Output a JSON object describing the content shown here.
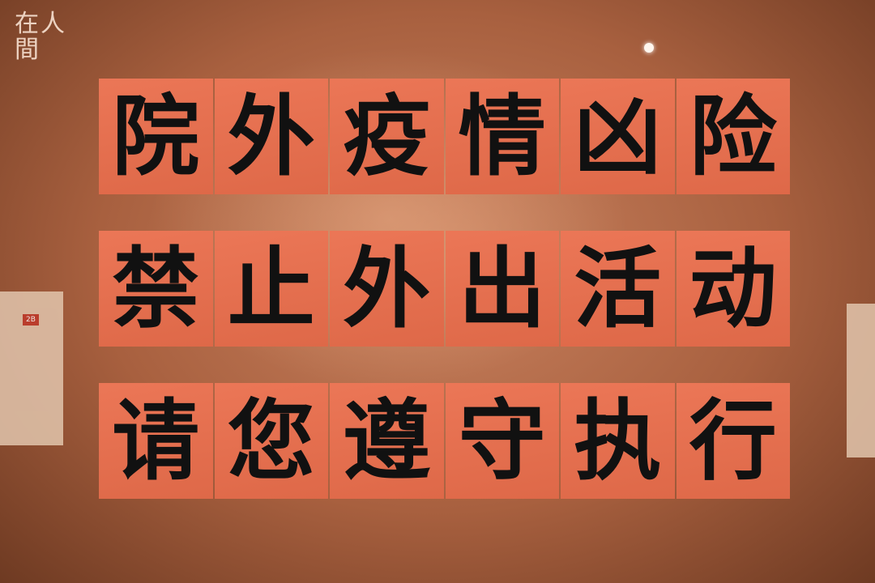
{
  "logo": "在人間",
  "signs": [
    [
      "院",
      "外",
      "疫",
      "情",
      "凶",
      "险"
    ],
    [
      "禁",
      "止",
      "外",
      "出",
      "活",
      "动"
    ],
    [
      "请",
      "您",
      "遵",
      "守",
      "执",
      "行"
    ]
  ],
  "poster_left": {
    "label": "2B"
  }
}
